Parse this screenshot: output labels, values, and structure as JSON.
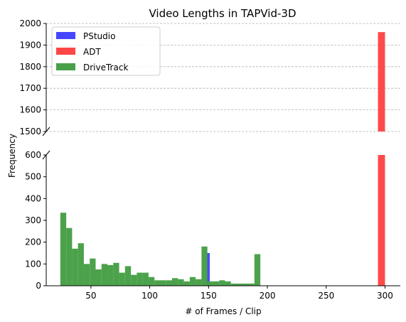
{
  "chart_data": {
    "type": "bar",
    "title": "Video Lengths in TAPVid-3D",
    "xlabel": "# of Frames / Clip",
    "ylabel": "Frequency",
    "x_ticks": [
      50,
      100,
      150,
      200,
      250,
      300
    ],
    "y_ticks_upper": [
      1500,
      1600,
      1700,
      1800,
      1900,
      2000
    ],
    "y_ticks_lower": [
      0,
      100,
      200,
      300,
      400,
      500,
      600
    ],
    "xlim": [
      12,
      313
    ],
    "ylim_upper": [
      1500,
      2000
    ],
    "ylim_lower": [
      0,
      600
    ],
    "broken_y_axis": true,
    "grid_upper": true,
    "grid_lower": false,
    "legend_position": "top-left",
    "bin_width": 5,
    "series": [
      {
        "name": "PStudio",
        "color": "#4646ff",
        "bins": [
          {
            "x0": 148,
            "x1": 151,
            "value": 150
          }
        ]
      },
      {
        "name": "ADT",
        "color": "#ff4646",
        "bins": [
          {
            "x0": 294,
            "x1": 300,
            "value": 1960
          }
        ]
      },
      {
        "name": "DriveTrack",
        "color": "#47a047",
        "bins": [
          {
            "x0": 24,
            "x1": 29,
            "value": 335
          },
          {
            "x0": 29,
            "x1": 34,
            "value": 265
          },
          {
            "x0": 34,
            "x1": 39,
            "value": 170
          },
          {
            "x0": 39,
            "x1": 44,
            "value": 195
          },
          {
            "x0": 44,
            "x1": 49,
            "value": 100
          },
          {
            "x0": 49,
            "x1": 54,
            "value": 125
          },
          {
            "x0": 54,
            "x1": 59,
            "value": 75
          },
          {
            "x0": 59,
            "x1": 64,
            "value": 100
          },
          {
            "x0": 64,
            "x1": 69,
            "value": 95
          },
          {
            "x0": 69,
            "x1": 74,
            "value": 105
          },
          {
            "x0": 74,
            "x1": 79,
            "value": 60
          },
          {
            "x0": 79,
            "x1": 84,
            "value": 90
          },
          {
            "x0": 84,
            "x1": 89,
            "value": 50
          },
          {
            "x0": 89,
            "x1": 94,
            "value": 60
          },
          {
            "x0": 94,
            "x1": 99,
            "value": 60
          },
          {
            "x0": 99,
            "x1": 104,
            "value": 40
          },
          {
            "x0": 104,
            "x1": 109,
            "value": 25
          },
          {
            "x0": 109,
            "x1": 114,
            "value": 25
          },
          {
            "x0": 114,
            "x1": 119,
            "value": 25
          },
          {
            "x0": 119,
            "x1": 124,
            "value": 35
          },
          {
            "x0": 124,
            "x1": 129,
            "value": 30
          },
          {
            "x0": 129,
            "x1": 134,
            "value": 20
          },
          {
            "x0": 134,
            "x1": 139,
            "value": 40
          },
          {
            "x0": 139,
            "x1": 144,
            "value": 30
          },
          {
            "x0": 144,
            "x1": 149,
            "value": 180
          },
          {
            "x0": 149,
            "x1": 154,
            "value": 20
          },
          {
            "x0": 154,
            "x1": 159,
            "value": 20
          },
          {
            "x0": 159,
            "x1": 164,
            "value": 25
          },
          {
            "x0": 164,
            "x1": 169,
            "value": 20
          },
          {
            "x0": 169,
            "x1": 174,
            "value": 10
          },
          {
            "x0": 174,
            "x1": 179,
            "value": 10
          },
          {
            "x0": 179,
            "x1": 184,
            "value": 10
          },
          {
            "x0": 184,
            "x1": 189,
            "value": 10
          },
          {
            "x0": 189,
            "x1": 194,
            "value": 145
          }
        ]
      }
    ]
  }
}
